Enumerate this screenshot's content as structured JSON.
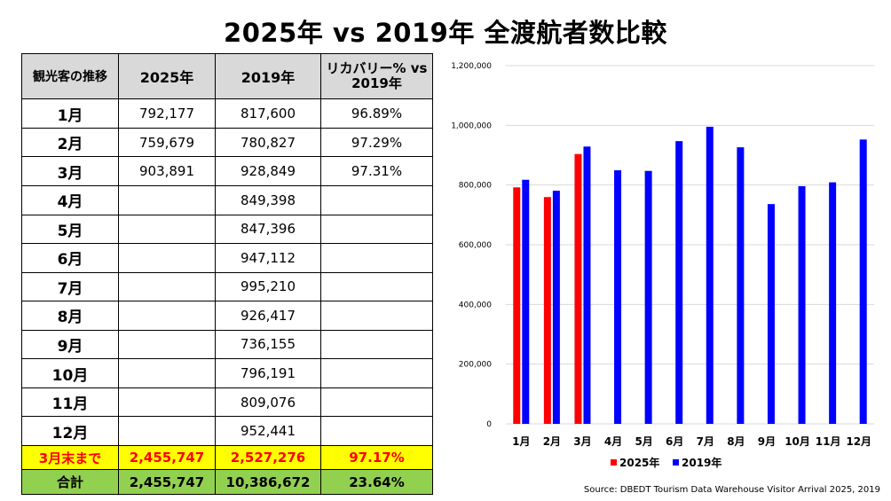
{
  "title": "2025年 vs 2019年 全渡航者数比較",
  "table": {
    "headers": [
      "観光客の推移",
      "2025年",
      "2019年",
      "リカバリー% vs 2019年"
    ],
    "rows": [
      {
        "month": "1月",
        "v2025": "792,177",
        "v2019": "817,600",
        "recovery": "96.89%"
      },
      {
        "month": "2月",
        "v2025": "759,679",
        "v2019": "780,827",
        "recovery": "97.29%"
      },
      {
        "month": "3月",
        "v2025": "903,891",
        "v2019": "928,849",
        "recovery": "97.31%"
      },
      {
        "month": "4月",
        "v2025": "",
        "v2019": "849,398",
        "recovery": ""
      },
      {
        "month": "5月",
        "v2025": "",
        "v2019": "847,396",
        "recovery": ""
      },
      {
        "month": "6月",
        "v2025": "",
        "v2019": "947,112",
        "recovery": ""
      },
      {
        "month": "7月",
        "v2025": "",
        "v2019": "995,210",
        "recovery": ""
      },
      {
        "month": "8月",
        "v2025": "",
        "v2019": "926,417",
        "recovery": ""
      },
      {
        "month": "9月",
        "v2025": "",
        "v2019": "736,155",
        "recovery": ""
      },
      {
        "month": "10月",
        "v2025": "",
        "v2019": "796,191",
        "recovery": ""
      },
      {
        "month": "11月",
        "v2025": "",
        "v2019": "809,076",
        "recovery": ""
      },
      {
        "month": "12月",
        "v2025": "",
        "v2019": "952,441",
        "recovery": ""
      }
    ],
    "subtotal": {
      "label": "3月末まで",
      "v2025": "2,455,747",
      "v2019": "2,527,276",
      "recovery": "97.17%"
    },
    "total": {
      "label": "合計",
      "v2025": "2,455,747",
      "v2019": "10,386,672",
      "recovery": "23.64%"
    }
  },
  "chart_data": {
    "type": "bar",
    "categories": [
      "1月",
      "2月",
      "3月",
      "4月",
      "5月",
      "6月",
      "7月",
      "8月",
      "9月",
      "10月",
      "11月",
      "12月"
    ],
    "series": [
      {
        "name": "2025年",
        "color": "#ff0000",
        "values": [
          792177,
          759679,
          903891,
          null,
          null,
          null,
          null,
          null,
          null,
          null,
          null,
          null
        ]
      },
      {
        "name": "2019年",
        "color": "#0000ff",
        "values": [
          817600,
          780827,
          928849,
          849398,
          847396,
          947112,
          995210,
          926417,
          736155,
          796191,
          809076,
          952441
        ]
      }
    ],
    "ylim": [
      0,
      1200000
    ],
    "yticks": [
      0,
      200000,
      400000,
      600000,
      800000,
      1000000,
      1200000
    ],
    "ytick_labels": [
      "0",
      "200,000",
      "400,000",
      "600,000",
      "800,000",
      "1,000,000",
      "1,200,000"
    ],
    "grid": true,
    "legend": "bottom"
  },
  "source": "Source: DBEDT Tourism Data Warehouse Visitor Arrival 2025, 2019"
}
